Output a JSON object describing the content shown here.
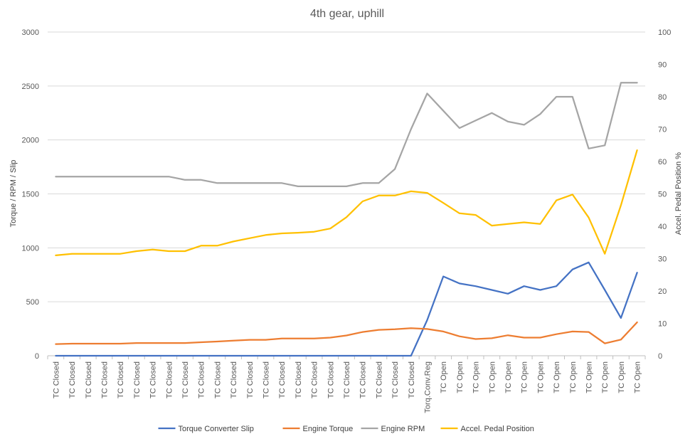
{
  "chart_data": {
    "type": "line",
    "title": "4th gear, uphill",
    "ylabel": "Torque / RPM / Slip",
    "y2label": "Accel. Pedal Position %",
    "ylim": [
      0,
      3000
    ],
    "yticks": [
      0,
      500,
      1000,
      1500,
      2000,
      2500,
      3000
    ],
    "y2lim": [
      0,
      100
    ],
    "y2ticks": [
      0,
      10,
      20,
      30,
      40,
      50,
      60,
      70,
      80,
      90,
      100
    ],
    "grid": true,
    "legend": "bottom",
    "categories": [
      "TC Closed",
      "TC Closed",
      "TC Closed",
      "TC Closed",
      "TC Closed",
      "TC Closed",
      "TC Closed",
      "TC Closed",
      "TC Closed",
      "TC Closed",
      "TC Closed",
      "TC Closed",
      "TC Closed",
      "TC Closed",
      "TC Closed",
      "TC Closed",
      "TC Closed",
      "TC Closed",
      "TC Closed",
      "TC Closed",
      "TC Closed",
      "TC Closed",
      "TC Closed",
      "Torq.Conv.Reg",
      "TC Open",
      "TC Open",
      "TC Open",
      "TC Open",
      "TC Open",
      "TC Open",
      "TC Open",
      "TC Open",
      "TC Open",
      "TC Open",
      "TC Open",
      "TC Open",
      "TC Open"
    ],
    "series": [
      {
        "name": "Torque Converter Slip",
        "color": "#4472C4",
        "axis": "left",
        "values": [
          0,
          0,
          0,
          0,
          0,
          0,
          0,
          0,
          0,
          0,
          0,
          0,
          0,
          0,
          0,
          0,
          0,
          0,
          0,
          0,
          0,
          0,
          0,
          330,
          735,
          670,
          645,
          610,
          575,
          645,
          610,
          645,
          800,
          865,
          610,
          350,
          770
        ]
      },
      {
        "name": "Engine Torque",
        "color": "#ED7D31",
        "axis": "left",
        "values": [
          108,
          112,
          112,
          112,
          112,
          118,
          118,
          118,
          118,
          125,
          132,
          140,
          148,
          148,
          160,
          160,
          160,
          168,
          188,
          220,
          240,
          245,
          255,
          248,
          225,
          180,
          155,
          162,
          190,
          168,
          168,
          200,
          225,
          220,
          115,
          150,
          310
        ]
      },
      {
        "name": "Engine RPM",
        "color": "#A5A5A5",
        "axis": "left",
        "values": [
          1660,
          1660,
          1660,
          1660,
          1660,
          1660,
          1660,
          1660,
          1630,
          1630,
          1600,
          1600,
          1600,
          1600,
          1600,
          1570,
          1570,
          1570,
          1570,
          1600,
          1600,
          1730,
          2100,
          2430,
          2270,
          2110,
          2180,
          2250,
          2170,
          2140,
          2240,
          2400,
          2400,
          1920,
          1950,
          2530,
          2530
        ]
      },
      {
        "name": "Accel. Pedal Position",
        "color": "#FFC000",
        "axis": "right",
        "values": [
          31,
          31.5,
          31.5,
          31.5,
          31.5,
          32.3,
          32.8,
          32.3,
          32.3,
          34,
          34,
          35.3,
          36.3,
          37.3,
          37.8,
          38,
          38.3,
          39.3,
          42.8,
          47.7,
          49.5,
          49.5,
          50.8,
          50.3,
          47.2,
          44,
          43.5,
          40.2,
          40.7,
          41.2,
          40.7,
          48,
          49.8,
          42.7,
          31.5,
          46.5,
          63.5
        ]
      }
    ]
  }
}
